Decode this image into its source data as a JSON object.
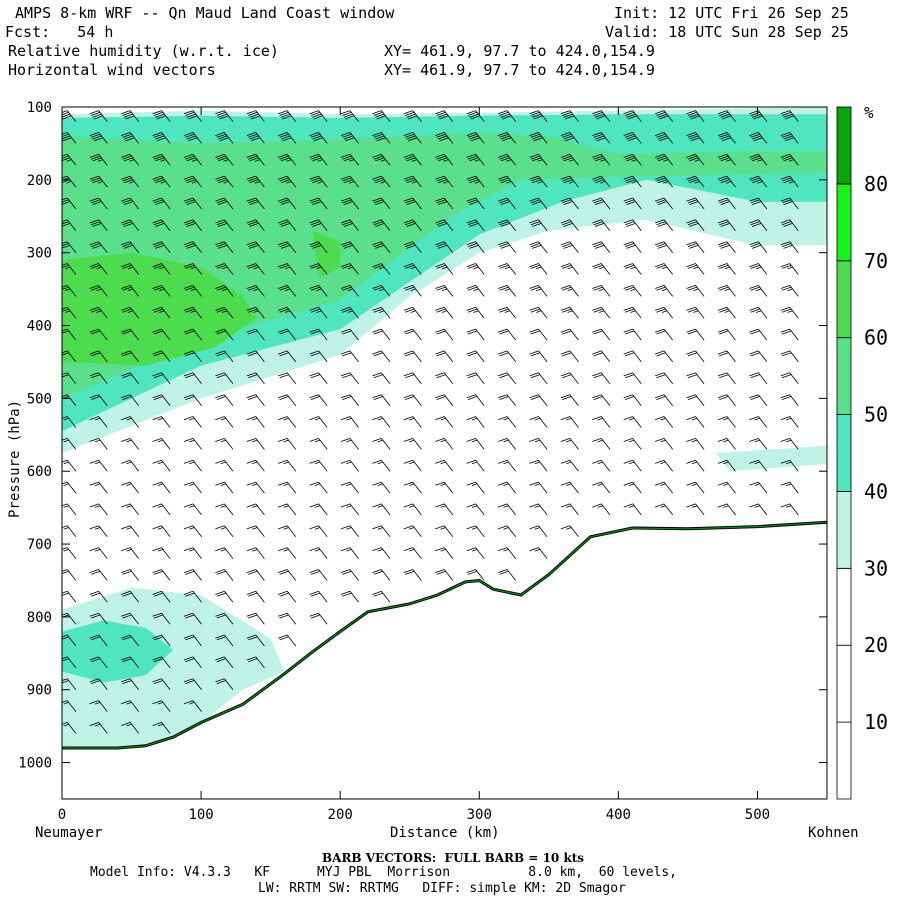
{
  "header": {
    "title": "AMPS 8-km WRF -- Qn Maud Land Coast window",
    "init": "Init: 12 UTC Fri 26 Sep 25",
    "fcst": "Fcst:   54 h",
    "valid": "Valid: 18 UTC Sun 28 Sep 25",
    "field1": "Relative humidity (w.r.t. ice)",
    "xy1": "XY= 461.9, 97.7 to 424.0,154.9",
    "field2": "Horizontal wind vectors",
    "xy2": "XY= 461.9, 97.7 to 424.0,154.9"
  },
  "footer": {
    "barb_note": "BARB VECTORS:  FULL BARB = 10 kts",
    "model_info": "Model Info: V4.3.3   KF      MYJ PBL  Morrison          8.0 km,  60 levels,",
    "physics": "LW: RRTM SW: RRTMG   DIFF: simple KM: 2D Smagor"
  },
  "colors": {
    "rh_30_40": "#bff3e6",
    "rh_40_50": "#4fe6bf",
    "rh_50_60": "#5ae08c",
    "rh_60_70": "#4ddc4d",
    "rh_70_80": "#19f219",
    "rh_80_plus": "#07a40b",
    "terrain": "#0a8a1a"
  },
  "chart_data": {
    "type": "cross-section",
    "xlabel": "Distance (km)",
    "ylabel": "Pressure (hPa)",
    "xlim": [
      0,
      550
    ],
    "ylim": [
      1050,
      100
    ],
    "x_ticks": [
      0,
      100,
      200,
      300,
      400,
      500
    ],
    "y_ticks": [
      100,
      200,
      300,
      400,
      500,
      600,
      700,
      800,
      900,
      1000
    ],
    "x_end_labels": [
      "Neumayer",
      "Kohnen"
    ],
    "colorbar": {
      "unit": "%",
      "levels": [
        10,
        20,
        30,
        40,
        50,
        60,
        70,
        80
      ],
      "range": [
        0,
        90
      ]
    },
    "terrain_surface": {
      "distance_km": [
        0,
        40,
        60,
        80,
        100,
        130,
        160,
        180,
        200,
        220,
        250,
        270,
        290,
        300,
        310,
        330,
        350,
        380,
        410,
        450,
        500,
        550
      ],
      "pressure_hpa": [
        980,
        980,
        977,
        965,
        945,
        920,
        878,
        848,
        820,
        793,
        782,
        770,
        752,
        750,
        762,
        770,
        742,
        690,
        678,
        679,
        676,
        670
      ]
    },
    "rh_regions": [
      {
        "level": 30,
        "distance_km": [
          0,
          100,
          200,
          300,
          400,
          550,
          550,
          500,
          420,
          350,
          300,
          250,
          200,
          100,
          0
        ],
        "pressure_hpa": [
          110,
          105,
          110,
          108,
          105,
          100,
          290,
          290,
          255,
          270,
          300,
          360,
          440,
          500,
          575
        ]
      },
      {
        "level": 40,
        "distance_km": [
          0,
          100,
          200,
          300,
          400,
          550,
          550,
          500,
          420,
          360,
          300,
          250,
          200,
          100,
          0
        ],
        "pressure_hpa": [
          115,
          112,
          115,
          112,
          110,
          110,
          230,
          230,
          200,
          230,
          275,
          340,
          405,
          455,
          545
        ]
      },
      {
        "level": 50,
        "distance_km": [
          0,
          100,
          200,
          300,
          350,
          400,
          500,
          550,
          550,
          420,
          330,
          280,
          200,
          100,
          0
        ],
        "pressure_hpa": [
          140,
          150,
          145,
          135,
          140,
          165,
          160,
          160,
          190,
          195,
          200,
          250,
          365,
          420,
          500
        ]
      },
      {
        "level": 60,
        "distance_km": [
          0,
          50,
          100,
          130,
          140,
          110,
          60,
          0
        ],
        "pressure_hpa": [
          310,
          300,
          320,
          360,
          390,
          430,
          455,
          450
        ]
      },
      {
        "level": 60,
        "distance_km": [
          180,
          200,
          200,
          185
        ],
        "pressure_hpa": [
          270,
          285,
          320,
          335
        ]
      },
      {
        "level": 30,
        "distance_km": [
          0,
          50,
          100,
          150,
          160,
          130,
          100,
          60,
          0
        ],
        "pressure_hpa": [
          790,
          760,
          770,
          830,
          875,
          900,
          945,
          980,
          980
        ]
      },
      {
        "level": 40,
        "distance_km": [
          0,
          30,
          60,
          80,
          60,
          30,
          0
        ],
        "pressure_hpa": [
          820,
          805,
          815,
          845,
          880,
          890,
          875
        ]
      },
      {
        "level": 30,
        "distance_km": [
          470,
          550,
          550,
          480
        ],
        "pressure_hpa": [
          575,
          565,
          590,
          600
        ]
      }
    ],
    "wind_barbs": {
      "full_barb_kts": 10,
      "column_count": 24,
      "pressure_levels_hpa": [
        120,
        150,
        180,
        210,
        240,
        270,
        300,
        330,
        360,
        390,
        420,
        450,
        480,
        510,
        540,
        570,
        600,
        630,
        660,
        690,
        720,
        750,
        780,
        810,
        840,
        870,
        900,
        930,
        960,
        990
      ],
      "representative_direction_deg": 300,
      "representative_speed_kts": [
        40,
        40,
        35,
        35,
        30,
        30,
        30,
        25,
        25,
        25,
        20,
        20,
        20,
        20,
        15,
        15,
        15,
        15,
        15,
        15,
        15,
        20,
        20,
        20,
        20,
        20,
        20,
        15,
        15,
        10
      ]
    }
  }
}
